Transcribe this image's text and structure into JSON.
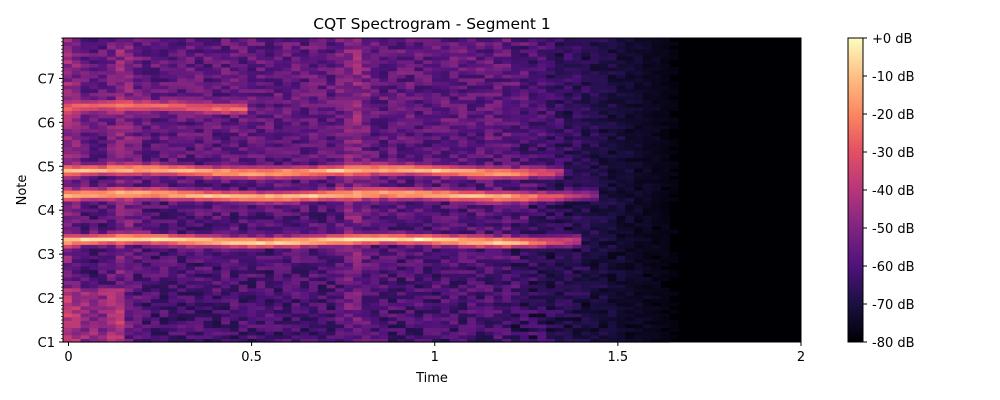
{
  "chart_data": {
    "type": "heatmap",
    "title": "CQT Spectrogram - Segment 1",
    "xlabel": "Time",
    "ylabel": "Note",
    "x_ticks": [
      {
        "value": 0,
        "label": "0"
      },
      {
        "value": 0.5,
        "label": "0.5"
      },
      {
        "value": 1,
        "label": "1"
      },
      {
        "value": 1.5,
        "label": "1.5"
      },
      {
        "value": 2,
        "label": "2"
      }
    ],
    "xlim": [
      -0.015,
      2.0
    ],
    "y_scale": "log2 (note octaves)",
    "y_ticks": [
      {
        "value": 0,
        "label": "C1"
      },
      {
        "value": 1,
        "label": "C2"
      },
      {
        "value": 2,
        "label": "C3"
      },
      {
        "value": 3,
        "label": "C4"
      },
      {
        "value": 4,
        "label": "C5"
      },
      {
        "value": 5,
        "label": "C6"
      },
      {
        "value": 6,
        "label": "C7"
      }
    ],
    "ylim_octaves": [
      0,
      6.92
    ],
    "colormap": "magma",
    "colorbar": {
      "range_db": [
        -80,
        0
      ],
      "ticks": [
        {
          "value": 0,
          "label": "+0 dB"
        },
        {
          "value": -10,
          "label": "-10 dB"
        },
        {
          "value": -20,
          "label": "-20 dB"
        },
        {
          "value": -30,
          "label": "-30 dB"
        },
        {
          "value": -40,
          "label": "-40 dB"
        },
        {
          "value": -50,
          "label": "-50 dB"
        },
        {
          "value": -60,
          "label": "-60 dB"
        },
        {
          "value": -70,
          "label": "-70 dB"
        },
        {
          "value": -80,
          "label": "-80 dB"
        }
      ]
    },
    "harmonic_bands": [
      {
        "octave": 2.32,
        "peak_db": -2,
        "t_end": 1.3
      },
      {
        "octave": 3.35,
        "peak_db": -6,
        "t_end": 1.35
      },
      {
        "octave": 3.9,
        "peak_db": -8,
        "t_end": 1.25
      },
      {
        "octave": 5.35,
        "peak_db": -22,
        "t_end": 0.4
      }
    ],
    "signal_fade": {
      "start": 1.2,
      "end": 1.7,
      "floor_db": -80
    },
    "onsets": [
      0.0,
      0.15,
      0.78
    ]
  }
}
